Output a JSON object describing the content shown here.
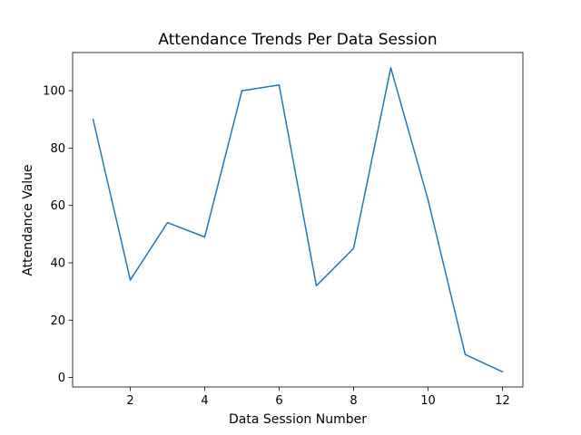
{
  "chart_data": {
    "type": "line",
    "title": "Attendance Trends Per Data Session",
    "xlabel": "Data Session Number",
    "ylabel": "Attendance Value",
    "xlim": [
      0.45,
      12.55
    ],
    "ylim": [
      -3.3,
      113.3
    ],
    "xticks": [
      2,
      4,
      6,
      8,
      10,
      12
    ],
    "yticks": [
      0,
      20,
      40,
      60,
      80,
      100
    ],
    "grid": false,
    "series": [
      {
        "color": "#1f77b4",
        "x": [
          1,
          2,
          3,
          4,
          5,
          6,
          7,
          8,
          9,
          10,
          11,
          12
        ],
        "y": [
          90,
          34,
          54,
          49,
          100,
          102,
          32,
          45,
          108,
          62,
          8,
          2
        ]
      }
    ]
  }
}
